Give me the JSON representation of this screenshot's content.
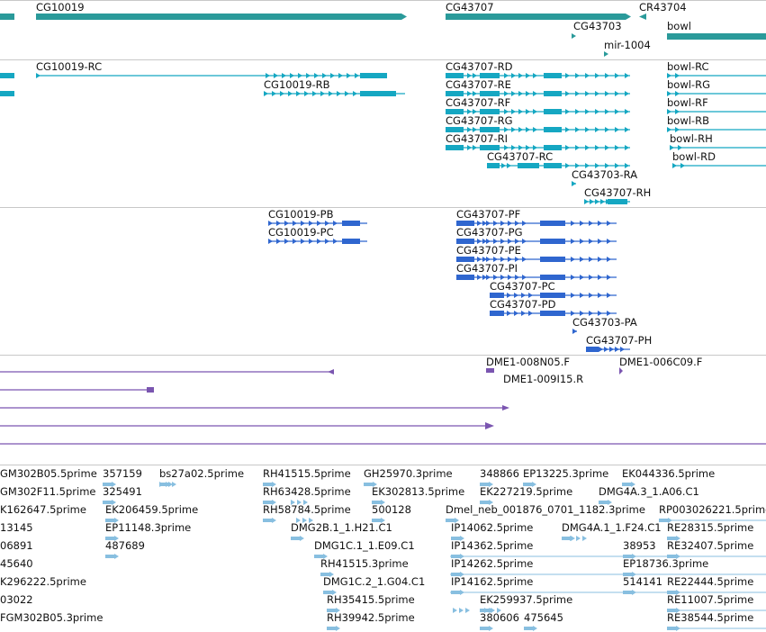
{
  "colors": {
    "gene": "#2a9a9a",
    "transcript": "#15a7c2",
    "protein": "#2f66cf",
    "clone": "#7a55b0",
    "est": "#88bfe0",
    "separator": "#c8c8c8"
  },
  "genes": {
    "labels": [
      "CG10019",
      "CG43707",
      "CR43704",
      "CG43703",
      "bowl",
      "mir-1004"
    ]
  },
  "transcripts": {
    "labels": [
      "CG10019-RC",
      "CG10019-RB",
      "CG43707-RD",
      "CG43707-RE",
      "CG43707-RF",
      "CG43707-RG",
      "CG43707-RI",
      "CG43707-RC",
      "CG43703-RA",
      "CG43707-RH",
      "bowl-RC",
      "bowl-RG",
      "bowl-RF",
      "bowl-RB",
      "bowl-RH",
      "bowl-RD"
    ]
  },
  "proteins": {
    "labels": [
      "CG10019-PB",
      "CG10019-PC",
      "CG43707-PF",
      "CG43707-PG",
      "CG43707-PE",
      "CG43707-PI",
      "CG43707-PC",
      "CG43707-PD",
      "CG43703-PA",
      "CG43707-PH"
    ]
  },
  "clones": {
    "labels": [
      "DME1-008N05.F",
      "DME1-006C09.F",
      "DME1-009I15.R"
    ]
  },
  "ests": {
    "labels": [
      "GM302B05.5prime",
      "357159",
      "bs27a02.5prime",
      "RH41515.5prime",
      "GH25970.3prime",
      "348866",
      "EP13225.3prime",
      "EK044336.5prime",
      "GM302F11.5prime",
      "325491",
      "RH63428.5prime",
      "EK302813.5prime",
      "EK227219.5prime",
      "DMG4A.3_1.A06.C1",
      "K162647.5prime",
      "EK206459.5prime",
      "RH58784.5prime",
      "500128",
      "Dmel_neb_001876_0701_1182.3prime",
      "RP003026221.5prime",
      "13145",
      "EP11148.3prime",
      "DMG2B.1_1.H21.C1",
      "IP14062.5prime",
      "DMG4A.1_1.F24.C1",
      "RE28315.5prime",
      "06891",
      "487689",
      "DMG1C.1_1.E09.C1",
      "IP14362.5prime",
      "38953",
      "RE32407.5prime",
      "45640",
      "RH41515.3prime",
      "IP14262.5prime",
      "EP18736.3prime",
      "K296222.5prime",
      "DMG1C.2_1.G04.C1",
      "IP14162.5prime",
      "514141",
      "RE22444.5prime",
      "03022",
      "RH35415.5prime",
      "EK259937.5prime",
      "RE11007.5prime",
      "FGM302B05.3prime",
      "RH39942.5prime",
      "380606",
      "475645",
      "RE38544.5prime"
    ]
  }
}
